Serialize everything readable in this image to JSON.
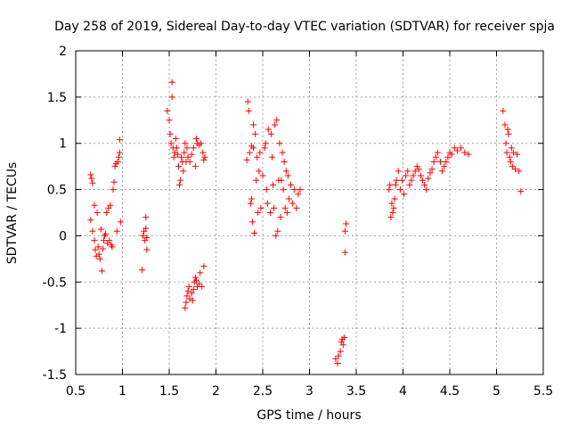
{
  "chart_data": {
    "type": "scatter",
    "title": "Day 258 of 2019, Sidereal Day-to-day VTEC variation (SDTVAR) for receiver spja",
    "xlabel": "GPS time / hours",
    "ylabel": "SDTVAR / TECUs",
    "xlim": [
      0.5,
      5.5
    ],
    "ylim": [
      -1.5,
      2
    ],
    "xticks": [
      0.5,
      1,
      1.5,
      2,
      2.5,
      3,
      3.5,
      4,
      4.5,
      5,
      5.5
    ],
    "xtick_labels": [
      "0.5",
      "1",
      "1.5",
      "2",
      "2.5",
      "3",
      "3.5",
      "4",
      "4.5",
      "5",
      "5.5"
    ],
    "yticks": [
      -1.5,
      -1,
      -0.5,
      0,
      0.5,
      1,
      1.5,
      2
    ],
    "ytick_labels": [
      "-1.5",
      "-1",
      "-0.5",
      "0",
      "0.5",
      "1",
      "1.5",
      "2"
    ],
    "grid": true,
    "marker": "+",
    "color": "#ff0000",
    "series": [
      {
        "name": "SDTVAR",
        "points": [
          [
            0.66,
            0.66
          ],
          [
            0.67,
            0.62
          ],
          [
            0.68,
            0.57
          ],
          [
            0.66,
            0.17
          ],
          [
            0.68,
            0.05
          ],
          [
            0.7,
            0.33
          ],
          [
            0.7,
            -0.05
          ],
          [
            0.71,
            -0.15
          ],
          [
            0.72,
            -0.22
          ],
          [
            0.73,
            0.25
          ],
          [
            0.74,
            -0.12
          ],
          [
            0.75,
            -0.2
          ],
          [
            0.76,
            -0.25
          ],
          [
            0.77,
            0.07
          ],
          [
            0.78,
            -0.38
          ],
          [
            0.79,
            -0.14
          ],
          [
            0.8,
            -0.05
          ],
          [
            0.81,
            0.0
          ],
          [
            0.82,
            0.02
          ],
          [
            0.83,
            0.25
          ],
          [
            0.84,
            -0.08
          ],
          [
            0.85,
            0.3
          ],
          [
            0.86,
            -0.05
          ],
          [
            0.87,
            0.33
          ],
          [
            0.88,
            -0.1
          ],
          [
            0.89,
            -0.12
          ],
          [
            0.9,
            0.5
          ],
          [
            0.91,
            0.58
          ],
          [
            0.92,
            0.75
          ],
          [
            0.93,
            0.78
          ],
          [
            0.94,
            0.05
          ],
          [
            0.95,
            0.8
          ],
          [
            0.96,
            0.85
          ],
          [
            0.97,
            0.9
          ],
          [
            0.97,
            1.04
          ],
          [
            0.98,
            0.15
          ],
          [
            1.21,
            -0.37
          ],
          [
            1.22,
            0.0
          ],
          [
            1.23,
            0.05
          ],
          [
            1.24,
            -0.05
          ],
          [
            1.25,
            0.08
          ],
          [
            1.25,
            0.2
          ],
          [
            1.26,
            -0.15
          ],
          [
            1.26,
            -0.02
          ],
          [
            1.48,
            1.35
          ],
          [
            1.5,
            1.25
          ],
          [
            1.51,
            1.1
          ],
          [
            1.52,
            1.0
          ],
          [
            1.53,
            1.5
          ],
          [
            1.53,
            1.66
          ],
          [
            1.54,
            0.95
          ],
          [
            1.55,
            0.85
          ],
          [
            1.56,
            0.9
          ],
          [
            1.57,
            1.05
          ],
          [
            1.58,
            0.95
          ],
          [
            1.59,
            0.88
          ],
          [
            1.6,
            0.75
          ],
          [
            1.61,
            0.55
          ],
          [
            1.62,
            0.6
          ],
          [
            1.63,
            0.85
          ],
          [
            1.64,
            0.8
          ],
          [
            1.65,
            0.7
          ],
          [
            1.66,
            0.9
          ],
          [
            1.67,
            1.0
          ],
          [
            1.68,
            0.8
          ],
          [
            1.69,
            0.95
          ],
          [
            1.7,
            0.85
          ],
          [
            1.72,
            0.8
          ],
          [
            1.74,
            0.88
          ],
          [
            1.76,
            0.95
          ],
          [
            1.78,
            0.75
          ],
          [
            1.79,
            1.05
          ],
          [
            1.8,
            1.0
          ],
          [
            1.82,
            0.98
          ],
          [
            1.84,
            1.0
          ],
          [
            1.86,
            0.9
          ],
          [
            1.87,
            0.82
          ],
          [
            1.88,
            0.85
          ],
          [
            1.67,
            -0.78
          ],
          [
            1.68,
            -0.72
          ],
          [
            1.69,
            -0.65
          ],
          [
            1.7,
            -0.6
          ],
          [
            1.71,
            -0.55
          ],
          [
            1.72,
            -0.68
          ],
          [
            1.74,
            -0.62
          ],
          [
            1.75,
            -0.7
          ],
          [
            1.76,
            -0.58
          ],
          [
            1.77,
            -0.5
          ],
          [
            1.78,
            -0.45
          ],
          [
            1.79,
            -0.48
          ],
          [
            1.8,
            -0.55
          ],
          [
            1.82,
            -0.52
          ],
          [
            1.83,
            -0.4
          ],
          [
            1.85,
            -0.55
          ],
          [
            1.87,
            -0.33
          ],
          [
            2.33,
            0.82
          ],
          [
            2.34,
            1.45
          ],
          [
            2.35,
            1.35
          ],
          [
            2.36,
            0.9
          ],
          [
            2.37,
            0.35
          ],
          [
            2.38,
            0.4
          ],
          [
            2.38,
            0.97
          ],
          [
            2.39,
            0.15
          ],
          [
            2.4,
            0.95
          ],
          [
            2.4,
            1.2
          ],
          [
            2.41,
            0.03
          ],
          [
            2.42,
            1.1
          ],
          [
            2.43,
            0.6
          ],
          [
            2.44,
            0.85
          ],
          [
            2.45,
            0.25
          ],
          [
            2.46,
            0.7
          ],
          [
            2.47,
            0.9
          ],
          [
            2.48,
            0.3
          ],
          [
            2.5,
            0.65
          ],
          [
            2.52,
            0.95
          ],
          [
            2.53,
            1.0
          ],
          [
            2.54,
            0.5
          ],
          [
            2.55,
            0.35
          ],
          [
            2.56,
            1.15
          ],
          [
            2.58,
            0.25
          ],
          [
            2.59,
            1.1
          ],
          [
            2.6,
            0.85
          ],
          [
            2.61,
            0.55
          ],
          [
            2.62,
            0.3
          ],
          [
            2.63,
            1.2
          ],
          [
            2.64,
            0.0
          ],
          [
            2.65,
            1.25
          ],
          [
            2.66,
            0.05
          ],
          [
            2.67,
            0.6
          ],
          [
            2.68,
            1.0
          ],
          [
            2.69,
            0.2
          ],
          [
            2.7,
            0.6
          ],
          [
            2.71,
            0.9
          ],
          [
            2.72,
            0.5
          ],
          [
            2.73,
            0.8
          ],
          [
            2.74,
            0.3
          ],
          [
            2.75,
            0.7
          ],
          [
            2.76,
            0.25
          ],
          [
            2.77,
            0.65
          ],
          [
            2.78,
            0.4
          ],
          [
            2.8,
            0.55
          ],
          [
            2.82,
            0.35
          ],
          [
            2.84,
            0.5
          ],
          [
            2.86,
            0.3
          ],
          [
            2.88,
            0.45
          ],
          [
            2.9,
            0.5
          ],
          [
            3.28,
            -1.33
          ],
          [
            3.3,
            -1.38
          ],
          [
            3.31,
            -1.3
          ],
          [
            3.33,
            -1.25
          ],
          [
            3.34,
            -1.15
          ],
          [
            3.35,
            -1.12
          ],
          [
            3.36,
            -1.18
          ],
          [
            3.37,
            -1.1
          ],
          [
            3.38,
            -0.18
          ],
          [
            3.38,
            0.05
          ],
          [
            3.39,
            0.13
          ],
          [
            3.85,
            0.5
          ],
          [
            3.86,
            0.55
          ],
          [
            3.87,
            0.2
          ],
          [
            3.88,
            0.35
          ],
          [
            3.89,
            0.25
          ],
          [
            3.9,
            0.3
          ],
          [
            3.91,
            0.4
          ],
          [
            3.92,
            0.55
          ],
          [
            3.93,
            0.6
          ],
          [
            3.95,
            0.7
          ],
          [
            3.97,
            0.5
          ],
          [
            3.99,
            0.6
          ],
          [
            4.01,
            0.45
          ],
          [
            4.03,
            0.65
          ],
          [
            4.05,
            0.7
          ],
          [
            4.07,
            0.55
          ],
          [
            4.09,
            0.6
          ],
          [
            4.11,
            0.65
          ],
          [
            4.13,
            0.7
          ],
          [
            4.15,
            0.75
          ],
          [
            4.17,
            0.72
          ],
          [
            4.19,
            0.65
          ],
          [
            4.21,
            0.6
          ],
          [
            4.23,
            0.55
          ],
          [
            4.25,
            0.5
          ],
          [
            4.27,
            0.62
          ],
          [
            4.29,
            0.68
          ],
          [
            4.31,
            0.72
          ],
          [
            4.33,
            0.8
          ],
          [
            4.35,
            0.85
          ],
          [
            4.37,
            0.9
          ],
          [
            4.4,
            0.8
          ],
          [
            4.42,
            0.7
          ],
          [
            4.44,
            0.75
          ],
          [
            4.46,
            0.8
          ],
          [
            4.48,
            0.85
          ],
          [
            4.5,
            0.9
          ],
          [
            4.52,
            0.88
          ],
          [
            4.55,
            0.95
          ],
          [
            4.58,
            0.92
          ],
          [
            4.62,
            0.95
          ],
          [
            4.66,
            0.9
          ],
          [
            4.7,
            0.88
          ],
          [
            5.07,
            1.35
          ],
          [
            5.09,
            1.2
          ],
          [
            5.1,
            1.0
          ],
          [
            5.11,
            0.9
          ],
          [
            5.12,
            1.15
          ],
          [
            5.13,
            1.1
          ],
          [
            5.14,
            0.85
          ],
          [
            5.15,
            0.8
          ],
          [
            5.16,
            0.95
          ],
          [
            5.17,
            0.75
          ],
          [
            5.18,
            0.9
          ],
          [
            5.2,
            0.72
          ],
          [
            5.22,
            0.88
          ],
          [
            5.24,
            0.7
          ],
          [
            5.26,
            0.48
          ]
        ]
      }
    ]
  }
}
